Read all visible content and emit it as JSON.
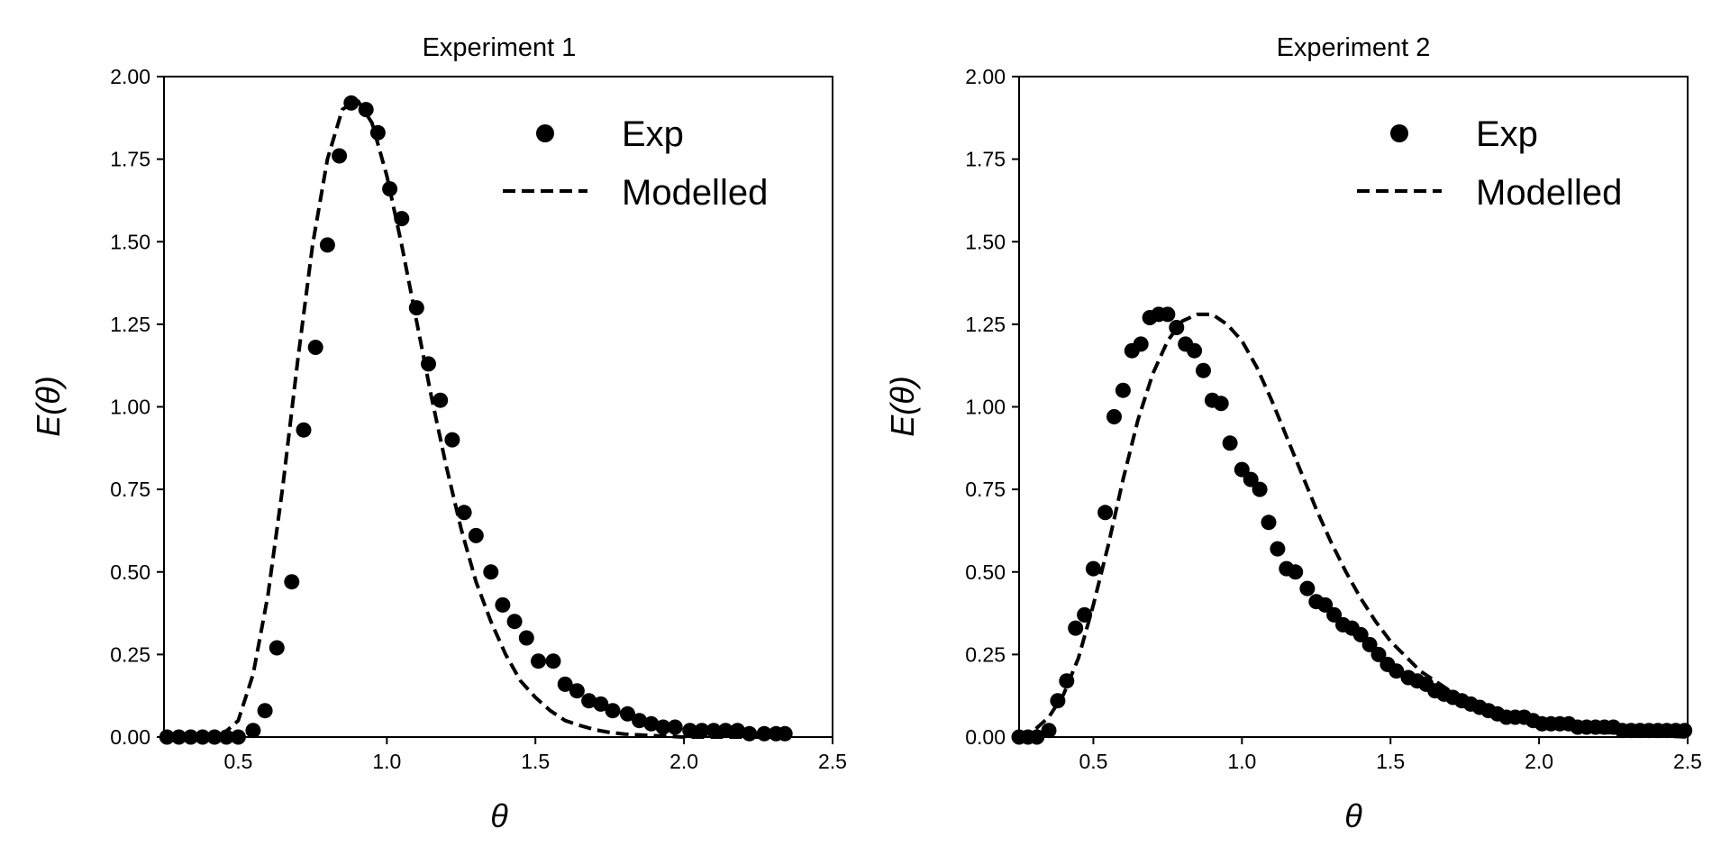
{
  "figure": {
    "background": "#ffffff",
    "ink": "#000000"
  },
  "chart_data": [
    {
      "type": "scatter",
      "title": "Experiment 1",
      "xlabel": "θ",
      "ylabel": "E(θ)",
      "xlim": [
        0.25,
        2.5
      ],
      "ylim": [
        0,
        2.0
      ],
      "xticks": [
        0.5,
        1.0,
        1.5,
        2.0,
        2.5
      ],
      "xtick_labels": [
        "0.5",
        "1.0",
        "1.5",
        "2.0",
        "2.5"
      ],
      "yticks": [
        0,
        0.25,
        0.5,
        0.75,
        1.0,
        1.25,
        1.5,
        1.75,
        2.0
      ],
      "ytick_labels": [
        "0.00",
        "0.25",
        "0.50",
        "0.75",
        "1.00",
        "1.25",
        "1.50",
        "1.75",
        "2.00"
      ],
      "grid": false,
      "legend_position": "top-right",
      "series": [
        {
          "name": "Exp",
          "style": "markers",
          "x": [
            0.26,
            0.3,
            0.34,
            0.38,
            0.42,
            0.46,
            0.5,
            0.55,
            0.59,
            0.63,
            0.68,
            0.72,
            0.76,
            0.8,
            0.84,
            0.88,
            0.93,
            0.97,
            1.01,
            1.05,
            1.1,
            1.14,
            1.18,
            1.22,
            1.26,
            1.3,
            1.35,
            1.39,
            1.43,
            1.47,
            1.51,
            1.56,
            1.6,
            1.64,
            1.68,
            1.72,
            1.76,
            1.81,
            1.85,
            1.89,
            1.93,
            1.97,
            2.02,
            2.06,
            2.1,
            2.14,
            2.18,
            2.22,
            2.27,
            2.31,
            2.34
          ],
          "y": [
            0.0,
            0.0,
            0.0,
            0.0,
            0.0,
            0.0,
            0.0,
            0.02,
            0.08,
            0.27,
            0.47,
            0.93,
            1.18,
            1.49,
            1.76,
            1.92,
            1.9,
            1.83,
            1.66,
            1.57,
            1.3,
            1.13,
            1.02,
            0.9,
            0.68,
            0.61,
            0.5,
            0.4,
            0.35,
            0.3,
            0.23,
            0.23,
            0.16,
            0.14,
            0.11,
            0.1,
            0.08,
            0.07,
            0.05,
            0.04,
            0.03,
            0.03,
            0.02,
            0.02,
            0.02,
            0.02,
            0.02,
            0.01,
            0.01,
            0.01,
            0.01
          ]
        },
        {
          "name": "Modelled",
          "style": "dashed",
          "x": [
            0.25,
            0.3,
            0.35,
            0.4,
            0.45,
            0.5,
            0.55,
            0.6,
            0.65,
            0.7,
            0.75,
            0.8,
            0.85,
            0.9,
            0.95,
            1.0,
            1.05,
            1.1,
            1.15,
            1.2,
            1.25,
            1.3,
            1.35,
            1.4,
            1.45,
            1.5,
            1.55,
            1.6,
            1.65,
            1.7,
            1.75,
            1.8,
            1.9,
            2.0,
            2.1,
            2.2,
            2.35
          ],
          "y": [
            0.0,
            0.0,
            0.0,
            0.0,
            0.01,
            0.05,
            0.19,
            0.43,
            0.76,
            1.14,
            1.49,
            1.75,
            1.9,
            1.93,
            1.86,
            1.7,
            1.49,
            1.26,
            1.03,
            0.82,
            0.63,
            0.47,
            0.35,
            0.25,
            0.17,
            0.12,
            0.08,
            0.05,
            0.035,
            0.022,
            0.014,
            0.009,
            0.004,
            0.0,
            0.0,
            0.0,
            0.0
          ]
        }
      ]
    },
    {
      "type": "scatter",
      "title": "Experiment 2",
      "xlabel": "θ",
      "ylabel": "E(θ)",
      "xlim": [
        0.25,
        2.5
      ],
      "ylim": [
        0,
        2.0
      ],
      "xticks": [
        0.5,
        1.0,
        1.5,
        2.0,
        2.5
      ],
      "xtick_labels": [
        "0.5",
        "1.0",
        "1.5",
        "2.0",
        "2.5"
      ],
      "yticks": [
        0,
        0.25,
        0.5,
        0.75,
        1.0,
        1.25,
        1.5,
        1.75,
        2.0
      ],
      "ytick_labels": [
        "0.00",
        "0.25",
        "0.50",
        "0.75",
        "1.00",
        "1.25",
        "1.50",
        "1.75",
        "2.00"
      ],
      "grid": false,
      "legend_position": "top-right",
      "series": [
        {
          "name": "Exp",
          "style": "markers",
          "x": [
            0.25,
            0.28,
            0.31,
            0.35,
            0.38,
            0.41,
            0.44,
            0.47,
            0.5,
            0.54,
            0.57,
            0.6,
            0.63,
            0.66,
            0.69,
            0.72,
            0.75,
            0.78,
            0.81,
            0.84,
            0.87,
            0.9,
            0.93,
            0.96,
            1.0,
            1.03,
            1.06,
            1.09,
            1.12,
            1.15,
            1.18,
            1.22,
            1.25,
            1.28,
            1.31,
            1.34,
            1.37,
            1.4,
            1.43,
            1.46,
            1.49,
            1.52,
            1.56,
            1.59,
            1.62,
            1.65,
            1.68,
            1.71,
            1.74,
            1.77,
            1.8,
            1.83,
            1.86,
            1.89,
            1.92,
            1.95,
            1.98,
            2.01,
            2.04,
            2.07,
            2.1,
            2.13,
            2.16,
            2.19,
            2.22,
            2.25,
            2.28,
            2.31,
            2.34,
            2.37,
            2.4,
            2.43,
            2.46,
            2.49
          ],
          "y": [
            0.0,
            0.0,
            0.0,
            0.02,
            0.11,
            0.17,
            0.33,
            0.37,
            0.51,
            0.68,
            0.97,
            1.05,
            1.17,
            1.19,
            1.27,
            1.28,
            1.28,
            1.24,
            1.19,
            1.17,
            1.11,
            1.02,
            1.01,
            0.89,
            0.81,
            0.78,
            0.75,
            0.65,
            0.57,
            0.51,
            0.5,
            0.45,
            0.41,
            0.4,
            0.37,
            0.34,
            0.33,
            0.31,
            0.28,
            0.25,
            0.22,
            0.2,
            0.18,
            0.17,
            0.16,
            0.14,
            0.13,
            0.12,
            0.11,
            0.1,
            0.09,
            0.08,
            0.07,
            0.06,
            0.06,
            0.06,
            0.05,
            0.04,
            0.04,
            0.04,
            0.04,
            0.03,
            0.03,
            0.03,
            0.03,
            0.03,
            0.02,
            0.02,
            0.02,
            0.02,
            0.02,
            0.02,
            0.02,
            0.02
          ]
        },
        {
          "name": "Modelled",
          "style": "dashed",
          "x": [
            0.25,
            0.3,
            0.35,
            0.4,
            0.45,
            0.5,
            0.55,
            0.6,
            0.65,
            0.7,
            0.75,
            0.8,
            0.85,
            0.9,
            0.95,
            1.0,
            1.05,
            1.1,
            1.15,
            1.2,
            1.25,
            1.3,
            1.35,
            1.4,
            1.45,
            1.5,
            1.6,
            1.7,
            1.8,
            1.9,
            2.0,
            2.1,
            2.2,
            2.3,
            2.4,
            2.5
          ],
          "y": [
            0.0,
            0.02,
            0.06,
            0.13,
            0.24,
            0.4,
            0.58,
            0.78,
            0.96,
            1.1,
            1.2,
            1.26,
            1.28,
            1.28,
            1.25,
            1.2,
            1.12,
            1.02,
            0.91,
            0.8,
            0.69,
            0.59,
            0.5,
            0.42,
            0.35,
            0.29,
            0.2,
            0.14,
            0.09,
            0.06,
            0.04,
            0.025,
            0.015,
            0.01,
            0.005,
            0.0
          ]
        }
      ]
    }
  ]
}
